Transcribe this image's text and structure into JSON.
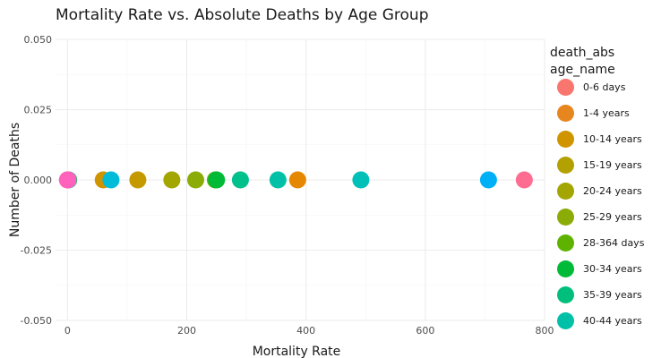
{
  "chart_data": {
    "type": "scatter",
    "title": "Mortality Rate vs. Absolute Deaths by Age Group",
    "xlabel": "Mortality Rate",
    "ylabel": "Number of Deaths",
    "xlim": [
      -20,
      800
    ],
    "ylim": [
      -0.05,
      0.05
    ],
    "x_ticks": [
      0,
      200,
      400,
      600,
      800
    ],
    "y_ticks": [
      -0.05,
      -0.025,
      0.0,
      0.025,
      0.05
    ],
    "x_tick_labels": [
      "0",
      "200",
      "400",
      "600",
      "800"
    ],
    "y_tick_labels": [
      "-0.050",
      "-0.025",
      "0.000",
      "0.025",
      "0.050"
    ],
    "grid": true,
    "legend": {
      "placement": "right",
      "title_lines": [
        "death_abs",
        "age_name"
      ],
      "entries": [
        {
          "label": "0-6 days",
          "color": "#F8766D"
        },
        {
          "label": "1-4 years",
          "color": "#E7851E"
        },
        {
          "label": "10-14 years",
          "color": "#D09400"
        },
        {
          "label": "15-19 years",
          "color": "#B2A100"
        },
        {
          "label": "20-24 years",
          "color": "#A3A500"
        },
        {
          "label": "25-29 years",
          "color": "#8BAB06"
        },
        {
          "label": "28-364 days",
          "color": "#5EB300"
        },
        {
          "label": "30-34 years",
          "color": "#00BA38"
        },
        {
          "label": "35-39 years",
          "color": "#00BF7D"
        },
        {
          "label": "40-44 years",
          "color": "#00C1A7"
        }
      ]
    },
    "points": [
      {
        "x": 0,
        "y": 0,
        "color": "#F8766D"
      },
      {
        "x": 1,
        "y": 0,
        "color": "#E7851E"
      },
      {
        "x": 2,
        "y": 0,
        "color": "#00BA38"
      },
      {
        "x": 1,
        "y": 0,
        "color": "#E76BF3"
      },
      {
        "x": 0,
        "y": 0,
        "color": "#FF62BC"
      },
      {
        "x": 60,
        "y": 0,
        "color": "#D09400"
      },
      {
        "x": 73,
        "y": 0,
        "color": "#00BCD8"
      },
      {
        "x": 118,
        "y": 0,
        "color": "#C49A00"
      },
      {
        "x": 175,
        "y": 0,
        "color": "#A3A500"
      },
      {
        "x": 215,
        "y": 0,
        "color": "#8BAB06"
      },
      {
        "x": 248,
        "y": 0,
        "color": "#5EB300"
      },
      {
        "x": 250,
        "y": 0,
        "color": "#00BA38"
      },
      {
        "x": 290,
        "y": 0,
        "color": "#00C08B"
      },
      {
        "x": 353,
        "y": 0,
        "color": "#00C1A7"
      },
      {
        "x": 386,
        "y": 0,
        "color": "#E58700"
      },
      {
        "x": 492,
        "y": 0,
        "color": "#00C0B8"
      },
      {
        "x": 706,
        "y": 0,
        "color": "#00B0F6"
      },
      {
        "x": 766,
        "y": 0,
        "color": "#FF6C91"
      }
    ]
  }
}
